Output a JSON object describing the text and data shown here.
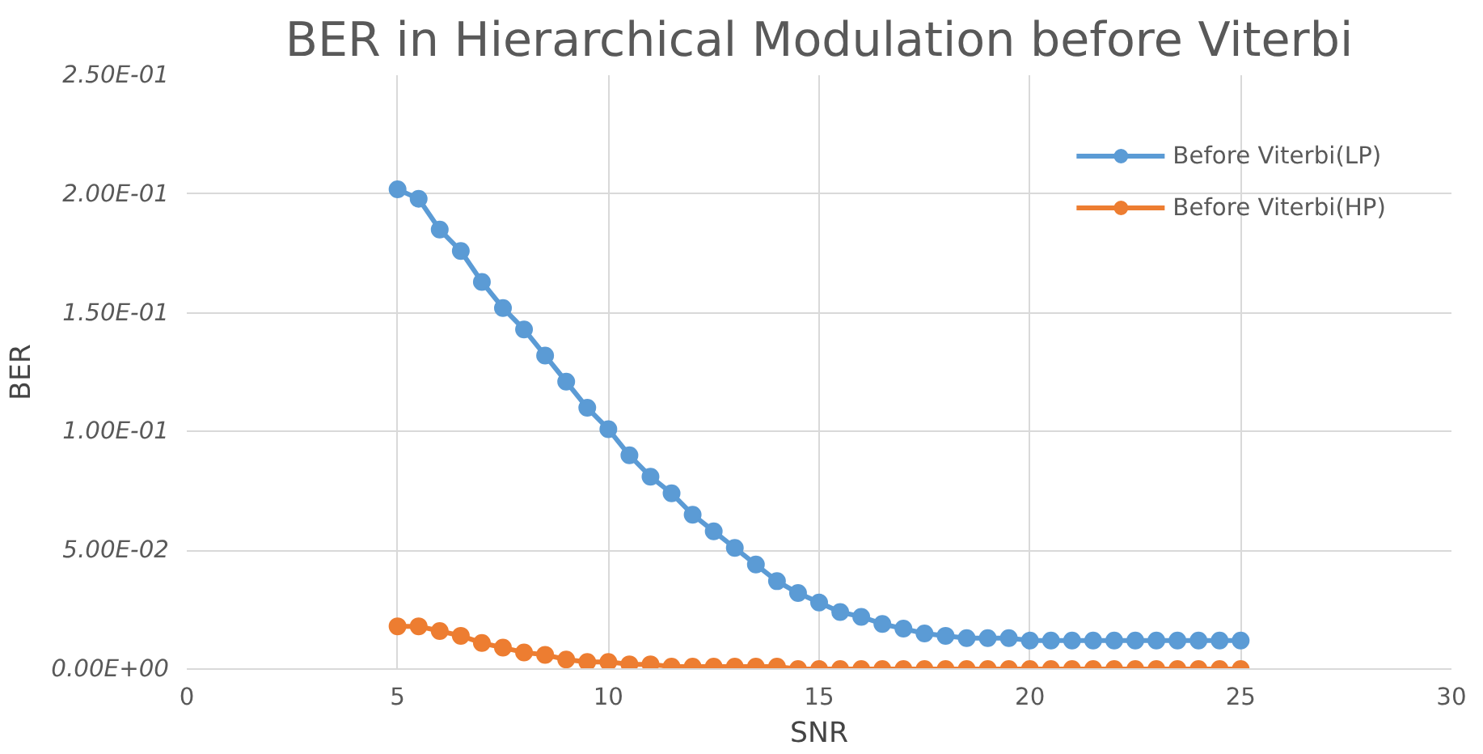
{
  "chart_data": {
    "type": "line",
    "title": "BER in Hierarchical Modulation before Viterbi",
    "xlabel": "SNR",
    "ylabel": "BER",
    "x": [
      5,
      5.5,
      6,
      6.5,
      7,
      7.5,
      8,
      8.5,
      9,
      9.5,
      10,
      10.5,
      11,
      11.5,
      12,
      12.5,
      13,
      13.5,
      14,
      14.5,
      15,
      15.5,
      16,
      16.5,
      17,
      17.5,
      18,
      18.5,
      19,
      19.5,
      20,
      20.5,
      21,
      21.5,
      22,
      22.5,
      23,
      23.5,
      24,
      24.5,
      25
    ],
    "series": [
      {
        "name": "Before Viterbi(LP)",
        "color": "#5b9bd5",
        "values": [
          0.202,
          0.198,
          0.185,
          0.176,
          0.163,
          0.152,
          0.143,
          0.132,
          0.121,
          0.11,
          0.101,
          0.09,
          0.081,
          0.074,
          0.065,
          0.058,
          0.051,
          0.044,
          0.037,
          0.032,
          0.028,
          0.024,
          0.022,
          0.019,
          0.017,
          0.015,
          0.014,
          0.013,
          0.013,
          0.013,
          0.012,
          0.012,
          0.012,
          0.012,
          0.012,
          0.012,
          0.012,
          0.012,
          0.012,
          0.012,
          0.012
        ]
      },
      {
        "name": "Before Viterbi(HP)",
        "color": "#ed7d31",
        "values": [
          0.018,
          0.018,
          0.016,
          0.014,
          0.011,
          0.009,
          0.007,
          0.006,
          0.004,
          0.003,
          0.003,
          0.002,
          0.002,
          0.001,
          0.001,
          0.001,
          0.001,
          0.001,
          0.001,
          0,
          0,
          0,
          0,
          0,
          0,
          0,
          0,
          0,
          0,
          0,
          0,
          0,
          0,
          0,
          0,
          0,
          0,
          0,
          0,
          0,
          0
        ]
      }
    ],
    "xlim": [
      0,
      30
    ],
    "xticks": [
      0,
      5,
      10,
      15,
      20,
      25,
      30
    ],
    "ylim": [
      0,
      0.25
    ],
    "yticks": [
      {
        "value": 0,
        "label": "0.00E+00"
      },
      {
        "value": 0.05,
        "label": "5.00E-02"
      },
      {
        "value": 0.1,
        "label": "1.00E-01"
      },
      {
        "value": 0.15,
        "label": "1.50E-01"
      },
      {
        "value": 0.2,
        "label": "2.00E-01"
      },
      {
        "value": 0.25,
        "label": "2.50E-01"
      }
    ],
    "grid": true,
    "legend": "top right",
    "marker": "circle",
    "line_style": "solid"
  }
}
